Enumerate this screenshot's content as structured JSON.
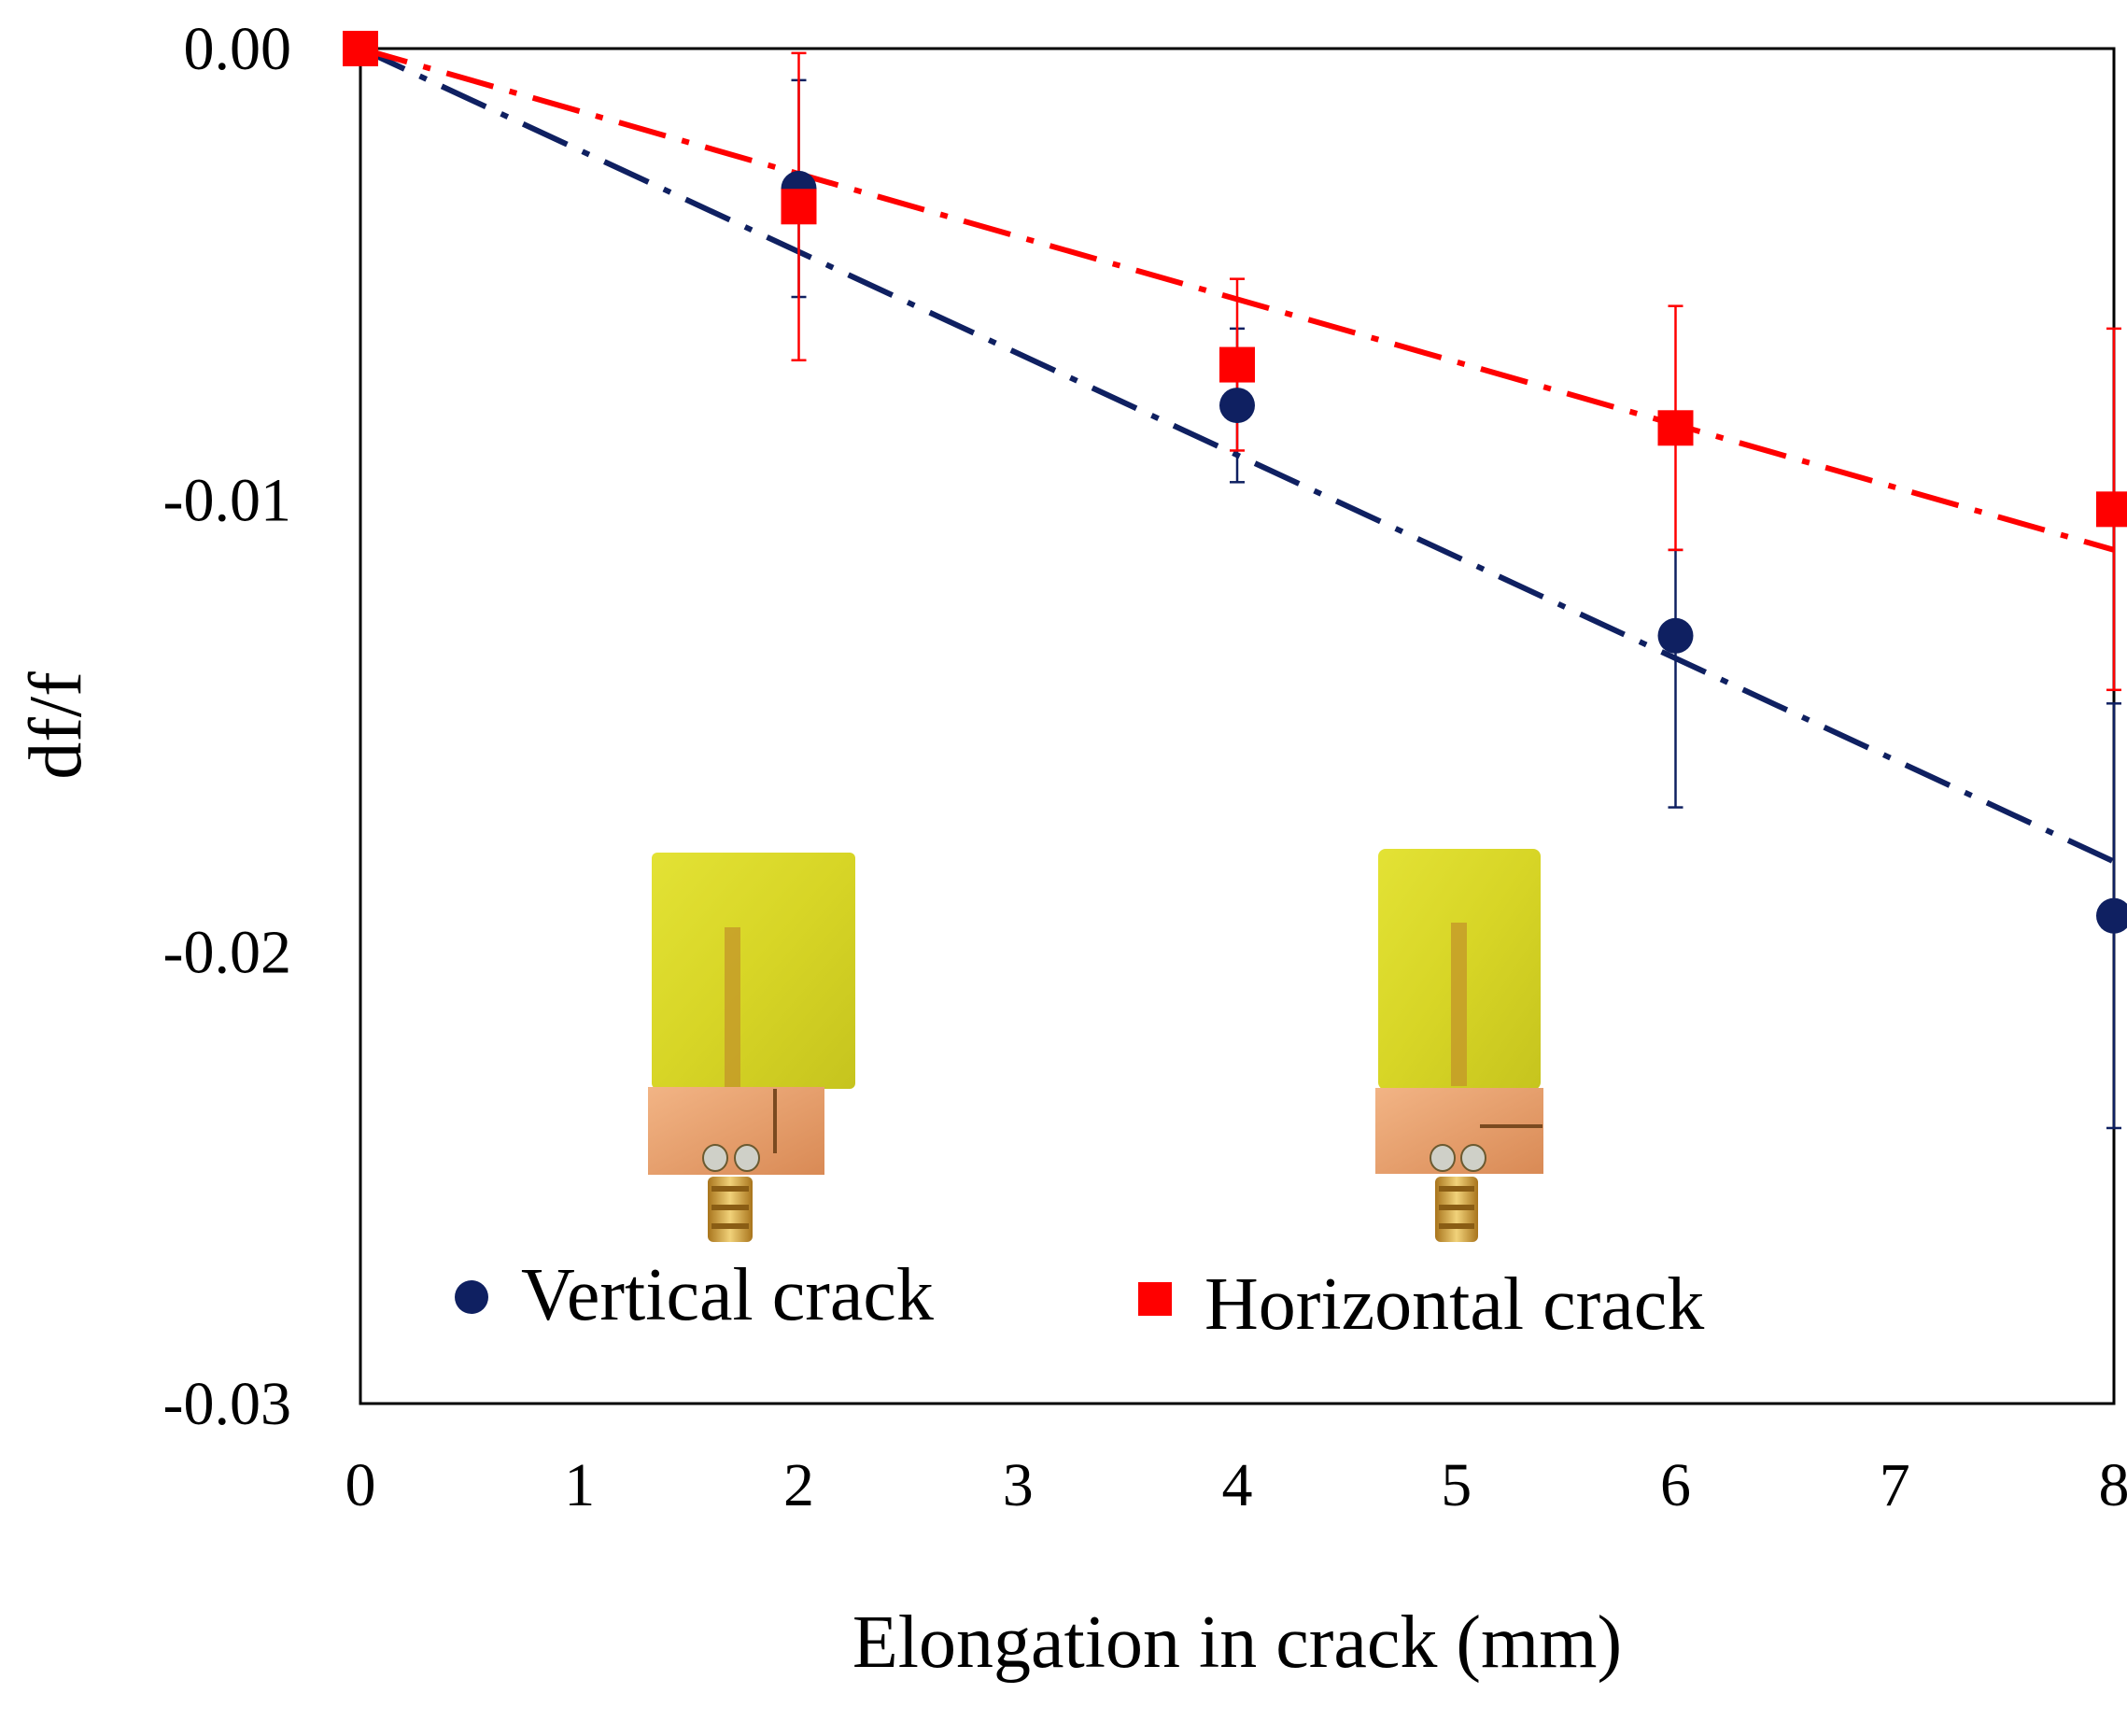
{
  "chart_data": {
    "type": "scatter",
    "title": "",
    "xlabel": "Elongation in crack (mm)",
    "ylabel": "df/f",
    "xlim": [
      0,
      8
    ],
    "ylim": [
      -0.03,
      0.0
    ],
    "x_ticks": [
      0,
      1,
      2,
      3,
      4,
      5,
      6,
      7,
      8
    ],
    "x_tick_labels": [
      "0",
      "1",
      "2",
      "3",
      "4",
      "5",
      "6",
      "7",
      "8"
    ],
    "y_ticks": [
      0.0,
      -0.01,
      -0.02,
      -0.03
    ],
    "y_tick_labels": [
      "0.00",
      "-0.01",
      "-0.02",
      "-0.03"
    ],
    "grid": false,
    "legend_position": "bottom-inside",
    "series": [
      {
        "name": "Vertical crack",
        "marker": "circle",
        "color": "#0f2061",
        "x": [
          0,
          2,
          4,
          6,
          8
        ],
        "values": [
          0.0,
          -0.0031,
          -0.0079,
          -0.013,
          -0.0192
        ],
        "error_upper": [
          0.0,
          0.0024,
          0.0017,
          0.0019,
          0.0047
        ],
        "error_lower": [
          0.0,
          0.0024,
          0.0017,
          0.0038,
          0.0047
        ],
        "trendline": {
          "style": "dash-dot",
          "from": [
            0,
            0.0
          ],
          "to": [
            8,
            -0.018
          ]
        }
      },
      {
        "name": "Horizontal crack",
        "marker": "square",
        "color": "#ff0000",
        "x": [
          0,
          2,
          4,
          6,
          8
        ],
        "values": [
          0.0,
          -0.0035,
          -0.007,
          -0.0084,
          -0.0102
        ],
        "error_upper": [
          0.0,
          0.0034,
          0.0019,
          0.0027,
          0.004
        ],
        "error_lower": [
          0.0,
          0.0034,
          0.0019,
          0.0027,
          0.004
        ],
        "trendline": {
          "style": "dash-dot",
          "from": [
            0,
            0.0
          ],
          "to": [
            8,
            -0.0111
          ]
        }
      }
    ],
    "inset_images": [
      {
        "name": "antenna-vertical-crack-photo",
        "description_icon": "antenna-photo"
      },
      {
        "name": "antenna-horizontal-crack-photo",
        "description_icon": "antenna-photo"
      }
    ]
  }
}
